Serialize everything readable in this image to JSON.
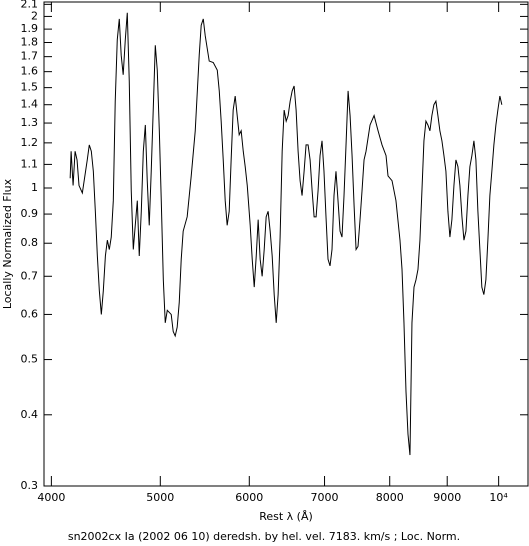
{
  "chart_data": {
    "type": "line",
    "title": "sn2002cx Ia (2002 06 10) deredsh. by hel. vel.  7183. km/s ;  Loc. Norm.",
    "x_label": "Rest λ (Å)",
    "y_label": "Locally Normalized Flux",
    "log_x": true,
    "log_y": true,
    "grid": false,
    "color": "#000000",
    "xlim": [
      3940,
      10620
    ],
    "ylim": [
      0.3,
      2.12
    ],
    "xticks": [
      4000,
      5000,
      6000,
      7000,
      8000,
      9000,
      {
        "value": 10000,
        "label": "10⁴"
      }
    ],
    "yticks": [
      0.3,
      0.4,
      0.5,
      0.6,
      0.7,
      0.8,
      0.9,
      1,
      1.1,
      1.2,
      1.3,
      1.4,
      1.5,
      1.6,
      1.7,
      1.8,
      1.9,
      2,
      2.1
    ],
    "x": [
      4157,
      4165,
      4182,
      4199,
      4216,
      4233,
      4262,
      4305,
      4323,
      4341,
      4359,
      4377,
      4395,
      4413,
      4431,
      4449,
      4468,
      4486,
      4504,
      4522,
      4541,
      4559,
      4578,
      4597,
      4615,
      4634,
      4654,
      4673,
      4692,
      4711,
      4731,
      4750,
      4770,
      4789,
      4809,
      4829,
      4849,
      4868,
      4888,
      4908,
      4928,
      4949,
      4969,
      4990,
      5010,
      5031,
      5051,
      5072,
      5113,
      5134,
      5155,
      5176,
      5198,
      5219,
      5240,
      5283,
      5327,
      5371,
      5415,
      5437,
      5460,
      5482,
      5527,
      5573,
      5619,
      5642,
      5664,
      5688,
      5711,
      5734,
      5758,
      5781,
      5805,
      5829,
      5853,
      5877,
      5901,
      5926,
      5950,
      5975,
      6011,
      6036,
      6061,
      6086,
      6110,
      6135,
      6160,
      6186,
      6211,
      6236,
      6262,
      6288,
      6314,
      6340,
      6365,
      6391,
      6418,
      6444,
      6471,
      6497,
      6524,
      6551,
      6577,
      6604,
      6631,
      6658,
      6685,
      6713,
      6740,
      6768,
      6796,
      6824,
      6852,
      6880,
      6908,
      6936,
      6964,
      6992,
      7021,
      7050,
      7079,
      7108,
      7137,
      7166,
      7196,
      7226,
      7255,
      7285,
      7315,
      7346,
      7376,
      7406,
      7437,
      7467,
      7497,
      7528,
      7559,
      7590,
      7621,
      7684,
      7748,
      7811,
      7875,
      7940,
      7972,
      8038,
      8103,
      8170,
      8204,
      8237,
      8271,
      8305,
      8339,
      8373,
      8408,
      8442,
      8477,
      8511,
      8546,
      8581,
      8616,
      8651,
      8687,
      8722,
      8758,
      8794,
      8830,
      8866,
      8903,
      8940,
      8976,
      9013,
      9050,
      9087,
      9125,
      9162,
      9200,
      9237,
      9276,
      9314,
      9352,
      9390,
      9428,
      9467,
      9506,
      9545,
      9584,
      9623,
      9662,
      9702,
      9742,
      9782,
      9822,
      9862,
      9903,
      9944,
      9984,
      10025,
      10066
    ],
    "values": [
      1.04,
      1.16,
      1.01,
      1.16,
      1.12,
      1.01,
      0.98,
      1.12,
      1.19,
      1.16,
      1.07,
      0.91,
      0.76,
      0.66,
      0.6,
      0.66,
      0.76,
      0.81,
      0.78,
      0.82,
      0.95,
      1.42,
      1.82,
      1.98,
      1.71,
      1.58,
      1.82,
      2.03,
      1.54,
      0.99,
      0.78,
      0.86,
      0.95,
      0.76,
      0.91,
      1.16,
      1.29,
      1.03,
      0.86,
      1.07,
      1.37,
      1.78,
      1.61,
      1.26,
      0.95,
      0.69,
      0.58,
      0.61,
      0.6,
      0.56,
      0.55,
      0.57,
      0.63,
      0.75,
      0.84,
      0.89,
      1.05,
      1.26,
      1.71,
      1.93,
      1.98,
      1.85,
      1.67,
      1.66,
      1.61,
      1.48,
      1.31,
      1.12,
      0.95,
      0.86,
      0.91,
      1.12,
      1.37,
      1.45,
      1.34,
      1.24,
      1.26,
      1.16,
      1.09,
      1.01,
      0.86,
      0.75,
      0.67,
      0.76,
      0.88,
      0.75,
      0.7,
      0.78,
      0.89,
      0.91,
      0.84,
      0.76,
      0.65,
      0.58,
      0.65,
      0.82,
      1.16,
      1.37,
      1.31,
      1.34,
      1.42,
      1.48,
      1.51,
      1.37,
      1.16,
      1.03,
      0.97,
      1.07,
      1.19,
      1.19,
      1.12,
      0.99,
      0.89,
      0.89,
      0.99,
      1.14,
      1.21,
      1.07,
      0.89,
      0.75,
      0.73,
      0.78,
      0.97,
      1.07,
      0.95,
      0.84,
      0.82,
      0.97,
      1.19,
      1.48,
      1.34,
      1.14,
      0.93,
      0.78,
      0.79,
      0.88,
      0.99,
      1.12,
      1.16,
      1.29,
      1.34,
      1.26,
      1.19,
      1.14,
      1.05,
      1.03,
      0.95,
      0.81,
      0.72,
      0.58,
      0.44,
      0.37,
      0.34,
      0.58,
      0.67,
      0.69,
      0.72,
      0.81,
      0.99,
      1.21,
      1.31,
      1.29,
      1.26,
      1.34,
      1.4,
      1.42,
      1.34,
      1.26,
      1.21,
      1.14,
      1.07,
      0.91,
      0.82,
      0.88,
      1.01,
      1.12,
      1.09,
      1.01,
      0.89,
      0.81,
      0.84,
      0.97,
      1.09,
      1.14,
      1.21,
      1.12,
      0.91,
      0.78,
      0.67,
      0.65,
      0.69,
      0.81,
      0.97,
      1.07,
      1.19,
      1.29,
      1.37,
      1.45,
      1.4
    ]
  }
}
